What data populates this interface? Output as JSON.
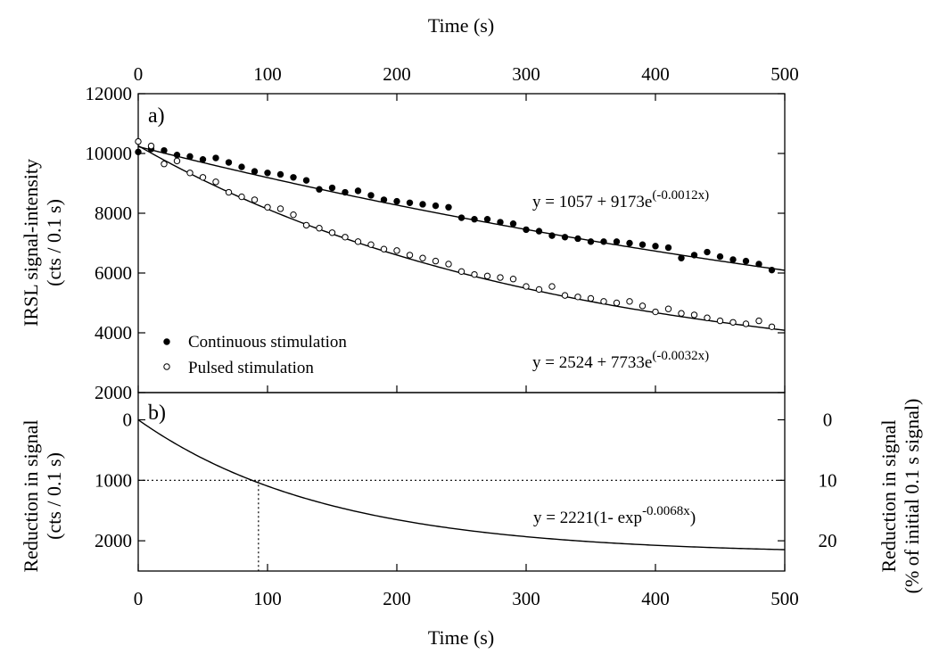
{
  "chart_data": [
    {
      "panel": "a)",
      "type": "scatter",
      "xlabel_top": "Time (s)",
      "ylabel": [
        "IRSL signal-intensity",
        "(cts / 0.1 s)"
      ],
      "xlim": [
        0,
        500
      ],
      "ylim": [
        2000,
        12000
      ],
      "x_ticks": [
        "0",
        "100",
        "200",
        "300",
        "400",
        "500"
      ],
      "y_ticks": [
        "2000",
        "4000",
        "6000",
        "8000",
        "10000",
        "12000"
      ],
      "legend": {
        "position": "lower-left",
        "entries": [
          "Continuous stimulation",
          "Pulsed stimulation"
        ]
      },
      "series": [
        {
          "name": "Continuous stimulation",
          "marker": "filled-circle",
          "x": [
            0,
            10,
            20,
            30,
            40,
            50,
            60,
            70,
            80,
            90,
            100,
            110,
            120,
            130,
            140,
            150,
            160,
            170,
            180,
            190,
            200,
            210,
            220,
            230,
            240,
            250,
            260,
            270,
            280,
            290,
            300,
            310,
            320,
            330,
            340,
            350,
            360,
            370,
            380,
            390,
            400,
            410,
            420,
            430,
            440,
            450,
            460,
            470,
            480,
            490
          ],
          "y": [
            10050,
            10150,
            10100,
            9950,
            9900,
            9800,
            9850,
            9700,
            9550,
            9400,
            9350,
            9300,
            9200,
            9100,
            8800,
            8850,
            8700,
            8750,
            8600,
            8450,
            8400,
            8350,
            8300,
            8250,
            8200,
            7850,
            7800,
            7800,
            7700,
            7650,
            7450,
            7400,
            7250,
            7200,
            7150,
            7050,
            7050,
            7050,
            7000,
            6950,
            6900,
            6850,
            6500,
            6600,
            6700,
            6550,
            6450,
            6400,
            6300,
            6100
          ],
          "fit_equation": "y = 1057 + 9173e",
          "fit_exponent": "(-0.0012x)",
          "fit": {
            "a": 1057,
            "b": 9173,
            "k": 0.0012
          }
        },
        {
          "name": "Pulsed stimulation",
          "marker": "open-circle",
          "x": [
            0,
            10,
            20,
            30,
            40,
            50,
            60,
            70,
            80,
            90,
            100,
            110,
            120,
            130,
            140,
            150,
            160,
            170,
            180,
            190,
            200,
            210,
            220,
            230,
            240,
            250,
            260,
            270,
            280,
            290,
            300,
            310,
            320,
            330,
            340,
            350,
            360,
            370,
            380,
            390,
            400,
            410,
            420,
            430,
            440,
            450,
            460,
            470,
            480,
            490
          ],
          "y": [
            10400,
            10250,
            9650,
            9750,
            9350,
            9200,
            9050,
            8700,
            8550,
            8450,
            8200,
            8150,
            7950,
            7600,
            7500,
            7350,
            7200,
            7050,
            6950,
            6800,
            6750,
            6600,
            6500,
            6400,
            6300,
            6050,
            5950,
            5900,
            5850,
            5800,
            5550,
            5450,
            5550,
            5250,
            5200,
            5150,
            5050,
            5000,
            5050,
            4900,
            4700,
            4800,
            4650,
            4600,
            4500,
            4400,
            4350,
            4300,
            4400,
            4200
          ],
          "fit_equation": "y = 2524 + 7733e",
          "fit_exponent": "(-0.0032x)",
          "fit": {
            "a": 2524,
            "b": 7733,
            "k": 0.0032
          }
        }
      ]
    },
    {
      "panel": "b)",
      "type": "line",
      "xlabel": "Time (s)",
      "ylabel": [
        "Reduction in signal",
        "(cts / 0.1 s)"
      ],
      "ylabel_right": [
        "Reduction in signal",
        "(% of initial 0.1 s signal)"
      ],
      "xlim": [
        0,
        500
      ],
      "ylim": [
        2500,
        -450
      ],
      "y_inverted": true,
      "x_ticks": [
        "0",
        "100",
        "200",
        "300",
        "400",
        "500"
      ],
      "y_ticks": [
        "0",
        "1000",
        "2000"
      ],
      "y_right_ticks": [
        "0",
        "10",
        "20"
      ],
      "reference_lines": {
        "y": 1000,
        "x_at_y": 93
      },
      "fit_equation": "y = 2221(1- exp",
      "fit_exponent": "-0.0068x",
      "fit_close": ")",
      "fit": {
        "A": 2221,
        "k": 0.0068
      }
    }
  ]
}
